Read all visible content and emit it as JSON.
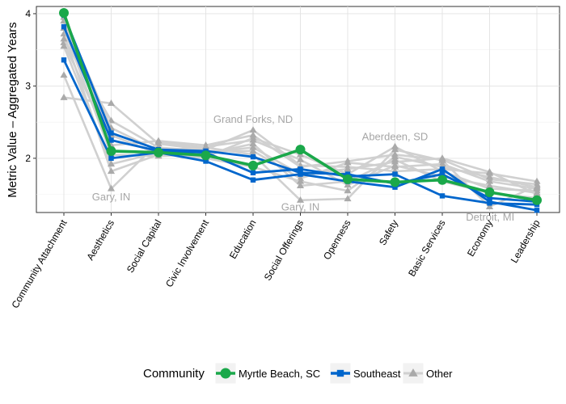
{
  "chart_data": {
    "type": "line",
    "xlabel": "",
    "ylabel": "Metric Value – Aggregated Years",
    "ylim": [
      1.25,
      4.1
    ],
    "yticks": [
      2,
      3,
      4
    ],
    "grid": true,
    "categories": [
      "Community Attachment",
      "Aesthetics",
      "Social Capital",
      "Civic Involvement",
      "Education",
      "Social Offerings",
      "Openness",
      "Safety",
      "Basic Services",
      "Economy",
      "Leadership"
    ],
    "series": [
      {
        "name": "Other",
        "group": "Other",
        "values": [
          3.15,
          1.58,
          2.22,
          2.15,
          2.05,
          1.42,
          1.44,
          2.12,
          1.97,
          1.33,
          1.62
        ]
      },
      {
        "name": "Other",
        "group": "Other",
        "values": [
          2.84,
          2.76,
          2.2,
          2.12,
          2.39,
          1.9,
          1.88,
          1.82,
          1.85,
          1.79,
          1.68
        ]
      },
      {
        "name": "Other",
        "group": "Other",
        "values": [
          3.6,
          2.18,
          2.24,
          2.18,
          2.32,
          1.88,
          1.96,
          2.05,
          1.98,
          1.71,
          1.64
        ]
      },
      {
        "name": "Other",
        "group": "Other",
        "values": [
          3.72,
          1.82,
          2.05,
          2.02,
          2.28,
          2.05,
          1.78,
          2.16,
          1.82,
          1.58,
          1.55
        ]
      },
      {
        "name": "Other",
        "group": "Other",
        "values": [
          3.9,
          2.32,
          2.06,
          2.08,
          2.15,
          1.78,
          1.85,
          1.95,
          2.0,
          1.81,
          1.5
        ]
      },
      {
        "name": "Other",
        "group": "Other",
        "values": [
          3.65,
          2.52,
          2.15,
          2.1,
          2.1,
          1.72,
          1.94,
          1.88,
          1.92,
          1.68,
          1.58
        ]
      },
      {
        "name": "Other",
        "group": "Other",
        "values": [
          3.8,
          2.05,
          2.03,
          2.06,
          2.2,
          1.62,
          1.68,
          1.98,
          1.68,
          1.52,
          1.45
        ]
      },
      {
        "name": "Other",
        "group": "Other",
        "values": [
          3.95,
          2.42,
          2.1,
          2.16,
          2.25,
          1.98,
          1.63,
          1.9,
          1.75,
          1.62,
          1.52
        ]
      },
      {
        "name": "Other",
        "group": "Other",
        "values": [
          3.55,
          1.92,
          2.08,
          2.0,
          1.88,
          1.68,
          1.55,
          2.02,
          1.88,
          1.74,
          1.6
        ]
      },
      {
        "name": "Southeast",
        "group": "Southeast",
        "values": [
          3.36,
          2.0,
          2.08,
          1.96,
          1.7,
          1.78,
          1.68,
          1.6,
          1.85,
          1.4,
          1.28
        ]
      },
      {
        "name": "Southeast",
        "group": "Southeast",
        "values": [
          3.82,
          2.25,
          2.1,
          2.08,
          1.8,
          1.85,
          1.75,
          1.78,
          1.48,
          1.38,
          1.36
        ]
      },
      {
        "name": "Southeast",
        "group": "Southeast",
        "values": [
          3.98,
          2.35,
          2.12,
          2.1,
          2.02,
          1.8,
          1.78,
          1.65,
          1.78,
          1.45,
          1.4
        ]
      },
      {
        "name": "Myrtle Beach, SC",
        "group": "Myrtle Beach, SC",
        "values": [
          4.01,
          2.1,
          2.08,
          2.04,
          1.9,
          2.12,
          1.71,
          1.67,
          1.7,
          1.53,
          1.42
        ]
      }
    ],
    "annotations": [
      {
        "text": "Grand Forks, ND",
        "category": "Education",
        "value": 2.49,
        "anchor": "middle"
      },
      {
        "text": "Gary, IN",
        "category": "Aesthetics",
        "value": 1.42,
        "anchor": "middle"
      },
      {
        "text": "Gary, IN",
        "category": "Social Offerings",
        "value": 1.28,
        "anchor": "middle"
      },
      {
        "text": "Aberdeen, SD",
        "category": "Safety",
        "value": 2.25,
        "anchor": "middle"
      },
      {
        "text": "Detroit, MI",
        "category": "Basic Services",
        "value": 1.14,
        "anchor": "start",
        "dx": 0.5
      }
    ],
    "legend": {
      "title": "Community",
      "position": "bottom",
      "entries": [
        {
          "label": "Myrtle Beach, SC",
          "group": "Myrtle Beach, SC"
        },
        {
          "label": "Southeast",
          "group": "Southeast"
        },
        {
          "label": "Other",
          "group": "Other"
        }
      ]
    },
    "styles": {
      "Other": {
        "color": "#aaaaaa",
        "line": "#d0d0d0",
        "marker": "triangle"
      },
      "Southeast": {
        "color": "#0066cc",
        "line": "#0066cc",
        "marker": "square"
      },
      "Myrtle Beach, SC": {
        "color": "#1aa84a",
        "line": "#1aa84a",
        "marker": "circle"
      }
    }
  }
}
